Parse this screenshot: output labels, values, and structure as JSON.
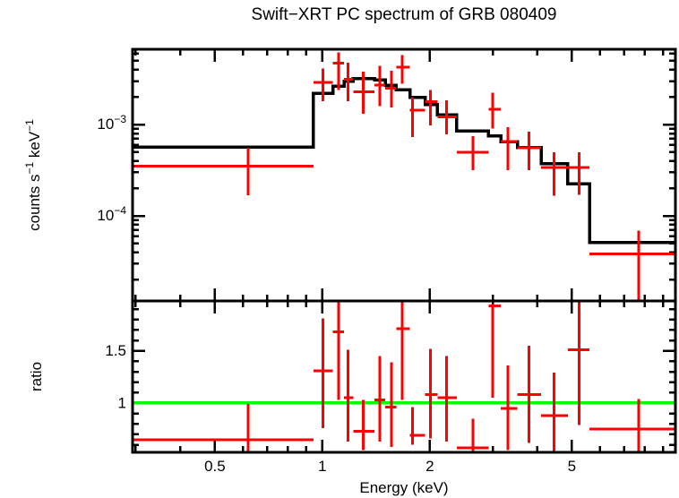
{
  "title": "Swift−XRT PC spectrum of GRB 080409",
  "colors": {
    "data": "#ff0000",
    "model": "#000000",
    "ratio_line": "#00ff00",
    "frame": "#000000",
    "background": "#ffffff"
  },
  "chart_data": {
    "type": "line",
    "title": "Swift−XRT PC spectrum of GRB 080409",
    "x_axis": {
      "label": "Energy (keV)",
      "scale": "log",
      "range": [
        0.294,
        9.75
      ],
      "major_ticks": [
        {
          "value": 0.5,
          "label": "0.5"
        },
        {
          "value": 1,
          "label": "1"
        },
        {
          "value": 2,
          "label": "2"
        },
        {
          "value": 5,
          "label": "5"
        }
      ],
      "minor_ticks": [
        0.3,
        0.4,
        0.6,
        0.7,
        0.8,
        0.9,
        3,
        4,
        6,
        7,
        8,
        9
      ]
    },
    "panels": [
      {
        "name": "spectrum",
        "ylabel_parts": [
          {
            "t": "counts s"
          },
          {
            "t": "−1",
            "sup": true
          },
          {
            "t": " keV"
          },
          {
            "t": "−1",
            "sup": true
          }
        ],
        "y_axis": {
          "scale": "log",
          "range": [
            1.17e-05,
            0.0067
          ],
          "major_ticks": [
            {
              "value": 0.001,
              "label_base": "10",
              "label_exp": "−3"
            },
            {
              "value": 0.0001,
              "label_base": "10",
              "label_exp": "−4"
            }
          ],
          "minor_ticks": [
            2e-05,
            3e-05,
            4e-05,
            5e-05,
            6e-05,
            7e-05,
            8e-05,
            9e-05,
            0.0002,
            0.0003,
            0.0004,
            0.0005,
            0.0006,
            0.0007,
            0.0008,
            0.0009,
            0.002,
            0.003,
            0.004,
            0.005,
            0.006
          ]
        },
        "model_histogram": {
          "bin_edges": [
            0.294,
            0.944,
            1.07,
            1.15,
            1.22,
            1.4,
            1.5,
            1.61,
            1.76,
            1.94,
            2.1,
            2.38,
            2.92,
            3.16,
            3.52,
            4.1,
            4.87,
            5.6,
            9.75
          ],
          "values": [
            0.00057,
            0.0022,
            0.00265,
            0.003,
            0.0032,
            0.0031,
            0.0027,
            0.0024,
            0.00198,
            0.00166,
            0.00128,
            0.00085,
            0.00075,
            0.00065,
            0.00056,
            0.000375,
            0.000225,
            5.1e-05
          ]
        },
        "points": [
          {
            "e": 0.62,
            "e_lo": 0.294,
            "e_hi": 0.944,
            "v": 0.00035,
            "v_lo": 0.000168,
            "v_hi": 0.00056
          },
          {
            "e": 1.005,
            "e_lo": 0.944,
            "e_hi": 1.07,
            "v": 0.0029,
            "v_lo": 0.0018,
            "v_hi": 0.0041
          },
          {
            "e": 1.11,
            "e_lo": 1.07,
            "e_hi": 1.15,
            "v": 0.0047,
            "v_lo": 0.0024,
            "v_hi": 0.0062
          },
          {
            "e": 1.18,
            "e_lo": 1.15,
            "e_hi": 1.22,
            "v": 0.00315,
            "v_lo": 0.0018,
            "v_hi": 0.00475
          },
          {
            "e": 1.3,
            "e_lo": 1.22,
            "e_hi": 1.4,
            "v": 0.0023,
            "v_lo": 0.00132,
            "v_hi": 0.0038
          },
          {
            "e": 1.45,
            "e_lo": 1.4,
            "e_hi": 1.5,
            "v": 0.0027,
            "v_lo": 0.0016,
            "v_hi": 0.0044
          },
          {
            "e": 1.56,
            "e_lo": 1.5,
            "e_hi": 1.61,
            "v": 0.0025,
            "v_lo": 0.00154,
            "v_hi": 0.0039
          },
          {
            "e": 1.675,
            "e_lo": 1.61,
            "e_hi": 1.76,
            "v": 0.00427,
            "v_lo": 0.0028,
            "v_hi": 0.0058
          },
          {
            "e": 1.79,
            "e_lo": 1.76,
            "e_hi": 1.94,
            "v": 0.00144,
            "v_lo": 0.00073,
            "v_hi": 0.002
          },
          {
            "e": 2.01,
            "e_lo": 1.94,
            "e_hi": 2.1,
            "v": 0.00179,
            "v_lo": 0.00098,
            "v_hi": 0.0024
          },
          {
            "e": 2.23,
            "e_lo": 2.1,
            "e_hi": 2.38,
            "v": 0.00122,
            "v_lo": 0.00078,
            "v_hi": 0.00185
          },
          {
            "e": 2.64,
            "e_lo": 2.38,
            "e_hi": 2.92,
            "v": 0.0005,
            "v_lo": 0.000316,
            "v_hi": 0.00075
          },
          {
            "e": 3.0,
            "e_lo": 2.92,
            "e_hi": 3.16,
            "v": 0.00148,
            "v_lo": 0.00091,
            "v_hi": 0.00224
          },
          {
            "e": 3.31,
            "e_lo": 3.16,
            "e_hi": 3.52,
            "v": 0.00065,
            "v_lo": 0.000316,
            "v_hi": 0.00094
          },
          {
            "e": 3.79,
            "e_lo": 3.52,
            "e_hi": 4.1,
            "v": 0.00056,
            "v_lo": 0.000316,
            "v_hi": 0.00084
          },
          {
            "e": 4.46,
            "e_lo": 4.1,
            "e_hi": 4.87,
            "v": 0.00034,
            "v_lo": 0.000167,
            "v_hi": 0.0005
          },
          {
            "e": 5.24,
            "e_lo": 4.87,
            "e_hi": 5.6,
            "v": 0.00034,
            "v_lo": 0.00017,
            "v_hi": 0.0005
          },
          {
            "e": 7.7,
            "e_lo": 5.6,
            "e_hi": 9.75,
            "v": 3.85e-05,
            "v_lo": 1.17e-05,
            "v_hi": 6.9e-05,
            "clip_lo": true
          }
        ]
      },
      {
        "name": "ratio",
        "ylabel_parts": [
          {
            "t": "ratio"
          }
        ],
        "y_axis": {
          "scale": "linear",
          "range": [
            0.528,
            1.978
          ],
          "major_ticks": [
            {
              "value": 1.5,
              "label": "1.5"
            },
            {
              "value": 1,
              "label": "1"
            }
          ],
          "minor_ticks": [
            0.6,
            0.7,
            0.8,
            0.9,
            1.1,
            1.2,
            1.3,
            1.4,
            1.6,
            1.7,
            1.8,
            1.9
          ]
        },
        "reference_line": {
          "value": 1,
          "color": "#00ff00"
        },
        "points": [
          {
            "e": 0.62,
            "e_lo": 0.294,
            "e_hi": 0.944,
            "r": 0.65,
            "r_lo": 0.528,
            "r_hi": 0.99,
            "clip_lo": true
          },
          {
            "e": 1.005,
            "e_lo": 0.944,
            "e_hi": 1.07,
            "r": 1.31,
            "r_lo": 0.76,
            "r_hi": 1.81
          },
          {
            "e": 1.11,
            "e_lo": 1.07,
            "e_hi": 1.15,
            "r": 1.68,
            "r_lo": 1.03,
            "r_hi": 1.978,
            "clip_hi": true
          },
          {
            "e": 1.18,
            "e_lo": 1.15,
            "e_hi": 1.22,
            "r": 1.05,
            "r_lo": 0.63,
            "r_hi": 1.51
          },
          {
            "e": 1.3,
            "e_lo": 1.22,
            "e_hi": 1.4,
            "r": 0.73,
            "r_lo": 0.55,
            "r_hi": 1.03
          },
          {
            "e": 1.45,
            "e_lo": 1.4,
            "e_hi": 1.5,
            "r": 1.03,
            "r_lo": 0.63,
            "r_hi": 1.45
          },
          {
            "e": 1.56,
            "e_lo": 1.5,
            "e_hi": 1.61,
            "r": 0.96,
            "r_lo": 0.58,
            "r_hi": 1.39
          },
          {
            "e": 1.675,
            "e_lo": 1.61,
            "e_hi": 1.76,
            "r": 1.71,
            "r_lo": 1.03,
            "r_hi": 1.978,
            "clip_hi": true
          },
          {
            "e": 1.79,
            "e_lo": 1.76,
            "e_hi": 1.94,
            "r": 0.69,
            "r_lo": 0.6,
            "r_hi": 0.96
          },
          {
            "e": 2.01,
            "e_lo": 1.94,
            "e_hi": 2.1,
            "r": 1.08,
            "r_lo": 0.66,
            "r_hi": 1.52
          },
          {
            "e": 2.23,
            "e_lo": 2.1,
            "e_hi": 2.38,
            "r": 1.05,
            "r_lo": 0.63,
            "r_hi": 1.45
          },
          {
            "e": 2.64,
            "e_lo": 2.38,
            "e_hi": 2.92,
            "r": 0.57,
            "r_lo": 0.528,
            "r_hi": 0.85,
            "clip_lo": true
          },
          {
            "e": 3.0,
            "e_lo": 2.92,
            "e_hi": 3.16,
            "r": 1.93,
            "r_lo": 1.05,
            "r_hi": 1.95
          },
          {
            "e": 3.31,
            "e_lo": 3.16,
            "e_hi": 3.52,
            "r": 0.95,
            "r_lo": 0.55,
            "r_hi": 1.36
          },
          {
            "e": 3.79,
            "e_lo": 3.52,
            "e_hi": 4.1,
            "r": 1.08,
            "r_lo": 0.62,
            "r_hi": 1.55
          },
          {
            "e": 4.46,
            "e_lo": 4.1,
            "e_hi": 4.87,
            "r": 0.88,
            "r_lo": 0.528,
            "r_hi": 1.29,
            "clip_lo": true
          },
          {
            "e": 5.24,
            "e_lo": 4.87,
            "e_hi": 5.6,
            "r": 1.51,
            "r_lo": 0.79,
            "r_hi": 1.978,
            "clip_hi": true
          },
          {
            "e": 7.7,
            "e_lo": 5.6,
            "e_hi": 9.75,
            "r": 0.75,
            "r_lo": 0.528,
            "r_hi": 1.04,
            "clip_lo": true
          }
        ]
      }
    ]
  }
}
